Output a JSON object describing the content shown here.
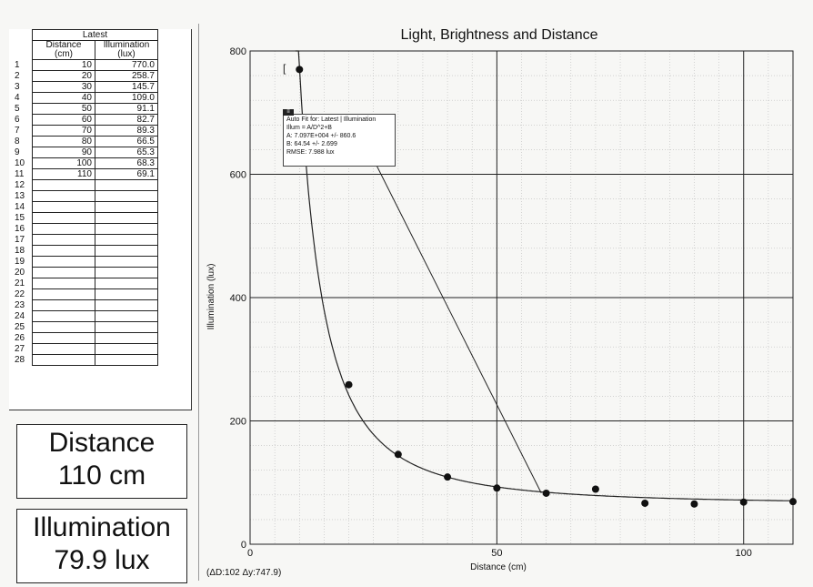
{
  "table": {
    "group_header": "Latest",
    "col_distance": [
      "Distance",
      "(cm)"
    ],
    "col_illumination": [
      "Illumination",
      "(lux)"
    ],
    "rows": [
      {
        "n": "1",
        "d": "10",
        "i": "770.0"
      },
      {
        "n": "2",
        "d": "20",
        "i": "258.7"
      },
      {
        "n": "3",
        "d": "30",
        "i": "145.7"
      },
      {
        "n": "4",
        "d": "40",
        "i": "109.0"
      },
      {
        "n": "5",
        "d": "50",
        "i": "91.1"
      },
      {
        "n": "6",
        "d": "60",
        "i": "82.7"
      },
      {
        "n": "7",
        "d": "70",
        "i": "89.3"
      },
      {
        "n": "8",
        "d": "80",
        "i": "66.5"
      },
      {
        "n": "9",
        "d": "90",
        "i": "65.3"
      },
      {
        "n": "10",
        "d": "100",
        "i": "68.3"
      },
      {
        "n": "11",
        "d": "110",
        "i": "69.1"
      },
      {
        "n": "12",
        "d": "",
        "i": ""
      },
      {
        "n": "13",
        "d": "",
        "i": ""
      },
      {
        "n": "14",
        "d": "",
        "i": ""
      },
      {
        "n": "15",
        "d": "",
        "i": ""
      },
      {
        "n": "16",
        "d": "",
        "i": ""
      },
      {
        "n": "17",
        "d": "",
        "i": ""
      },
      {
        "n": "18",
        "d": "",
        "i": ""
      },
      {
        "n": "19",
        "d": "",
        "i": ""
      },
      {
        "n": "20",
        "d": "",
        "i": ""
      },
      {
        "n": "21",
        "d": "",
        "i": ""
      },
      {
        "n": "22",
        "d": "",
        "i": ""
      },
      {
        "n": "23",
        "d": "",
        "i": ""
      },
      {
        "n": "24",
        "d": "",
        "i": ""
      },
      {
        "n": "25",
        "d": "",
        "i": ""
      },
      {
        "n": "26",
        "d": "",
        "i": ""
      },
      {
        "n": "27",
        "d": "",
        "i": ""
      },
      {
        "n": "28",
        "d": "",
        "i": ""
      }
    ]
  },
  "readouts": {
    "distance_label": "Distance",
    "distance_value": "110 cm",
    "illumination_label": "Illumination",
    "illumination_value": "79.9 lux"
  },
  "fit_box": {
    "line1": "Auto Fit for: Latest | Illumination",
    "line2": "Illum = A/D^2+B",
    "line3": "A: 7.097E+004 +/- 860.6",
    "line4": "B: 64.54 +/- 2.699",
    "line5": "RMSE: 7.988 lux"
  },
  "delta_readout": "(ΔD:102 Δy:747.9)",
  "chart_data": {
    "type": "scatter",
    "title": "Light, Brightness and Distance",
    "xlabel": "Distance (cm)",
    "ylabel": "Illumination (lux)",
    "xlim": [
      0,
      110
    ],
    "ylim": [
      0,
      800
    ],
    "x_ticks": [
      0,
      50,
      100
    ],
    "y_ticks": [
      0,
      200,
      400,
      600,
      800
    ],
    "grid": true,
    "points": {
      "x": [
        10,
        20,
        30,
        40,
        50,
        60,
        70,
        80,
        90,
        100,
        110
      ],
      "y": [
        770.0,
        258.7,
        145.7,
        109.0,
        91.1,
        82.7,
        89.3,
        66.5,
        65.3,
        68.3,
        69.1
      ]
    },
    "fit": {
      "model": "A/D^2+B",
      "A": 70970,
      "B": 64.54
    },
    "annotation_line": {
      "x": [
        21,
        59
      ],
      "y": [
        688,
        83
      ]
    }
  }
}
